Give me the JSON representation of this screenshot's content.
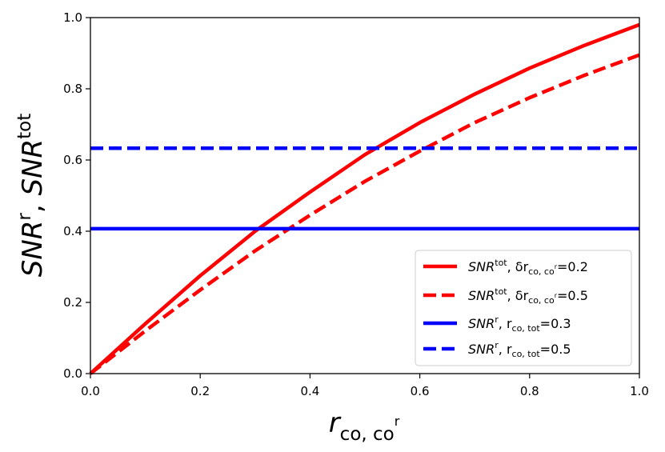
{
  "chart_data": {
    "type": "line",
    "title": "",
    "xlabel": {
      "base": "r",
      "sub": "co, co",
      "subsup": "r"
    },
    "ylabel": {
      "p1": "SNR",
      "p1sup": "r",
      "sep": ", ",
      "p2": "SNR",
      "p2sup": "tot"
    },
    "xlim": [
      0.0,
      1.0
    ],
    "ylim": [
      0.0,
      1.0
    ],
    "xticks": [
      0.0,
      0.2,
      0.4,
      0.6,
      0.8,
      1.0
    ],
    "yticks": [
      0.0,
      0.2,
      0.4,
      0.6,
      0.8,
      1.0
    ],
    "xtick_labels": [
      "0.0",
      "0.2",
      "0.4",
      "0.6",
      "0.8",
      "1.0"
    ],
    "ytick_labels": [
      "0.0",
      "0.2",
      "0.4",
      "0.6",
      "0.8",
      "1.0"
    ],
    "grid": false,
    "legend_position": "lower-right",
    "series": [
      {
        "name": "SNR^tot, δr_co,co^r=0.2",
        "color": "#ff0000",
        "style": "solid",
        "x": [
          0.0,
          0.1,
          0.2,
          0.3,
          0.4,
          0.5,
          0.6,
          0.7,
          0.8,
          0.9,
          1.0
        ],
        "y": [
          0.0,
          0.14,
          0.275,
          0.4,
          0.51,
          0.615,
          0.705,
          0.785,
          0.858,
          0.922,
          0.98
        ],
        "legend": {
          "p1": "SNR",
          "sup1": "tot",
          "p2": ", δr",
          "sub": "co, co",
          "subsup": "r",
          "val": "=0.2"
        }
      },
      {
        "name": "SNR^tot, δr_co,co^r=0.5",
        "color": "#ff0000",
        "style": "dashed",
        "x": [
          0.0,
          0.1,
          0.2,
          0.3,
          0.4,
          0.5,
          0.6,
          0.7,
          0.8,
          0.9,
          1.0
        ],
        "y": [
          0.0,
          0.12,
          0.235,
          0.345,
          0.445,
          0.54,
          0.625,
          0.705,
          0.775,
          0.838,
          0.895
        ],
        "legend": {
          "p1": "SNR",
          "sup1": "tot",
          "p2": ", δr",
          "sub": "co, co",
          "subsup": "r",
          "val": "=0.5"
        }
      },
      {
        "name": "SNR^r, r_co,tot=0.3",
        "color": "#0000ff",
        "style": "solid",
        "x": [
          0.0,
          1.0
        ],
        "y": [
          0.407,
          0.407
        ],
        "legend": {
          "p1": "SNR",
          "sup1": "r",
          "p2": ", r",
          "sub": "co, tot",
          "subsup": "",
          "val": "=0.3"
        }
      },
      {
        "name": "SNR^r, r_co,tot=0.5",
        "color": "#0000ff",
        "style": "dashed",
        "x": [
          0.0,
          1.0
        ],
        "y": [
          0.633,
          0.633
        ],
        "legend": {
          "p1": "SNR",
          "sup1": "r",
          "p2": ", r",
          "sub": "co, tot",
          "subsup": "",
          "val": "=0.5"
        }
      }
    ]
  }
}
